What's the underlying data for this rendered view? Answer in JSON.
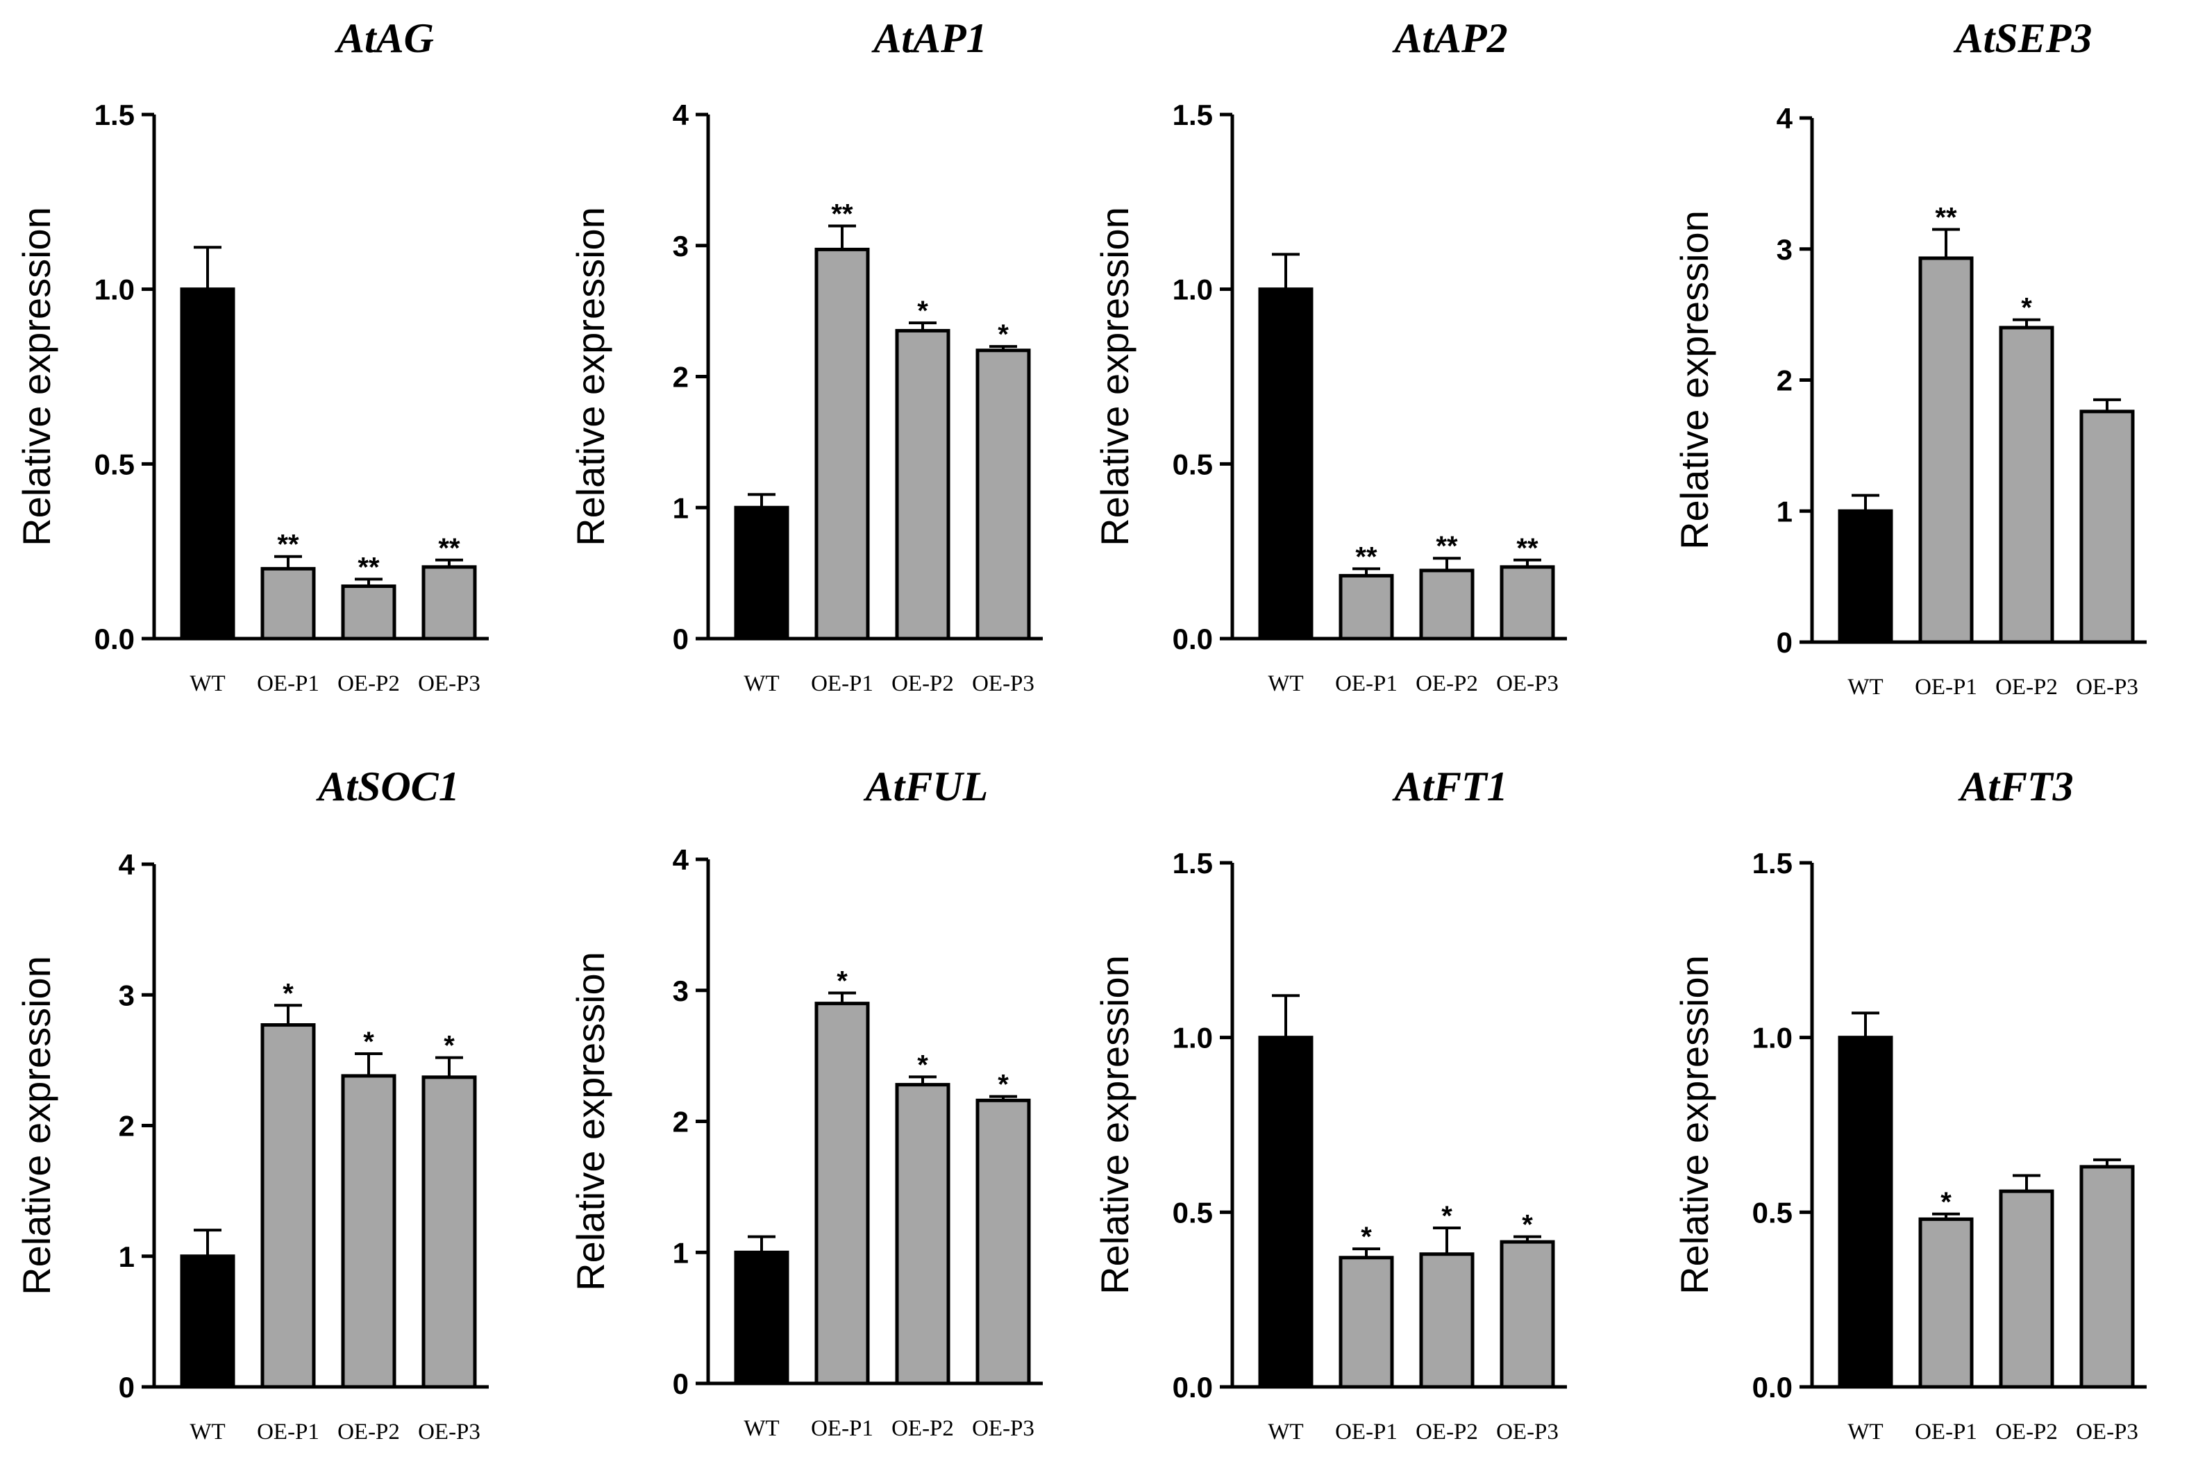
{
  "figure": {
    "colors": {
      "wt_bar": "#000000",
      "oe_bar": "#a6a6a6",
      "axis": "#000000"
    }
  },
  "chart_data": [
    {
      "type": "bar",
      "title": "AtAG",
      "ylabel": "Relative expression",
      "xlabel": "",
      "categories": [
        "WT",
        "OE-P1",
        "OE-P2",
        "OE-P3"
      ],
      "values": [
        1.0,
        0.2,
        0.15,
        0.205
      ],
      "errors": [
        0.12,
        0.035,
        0.02,
        0.02
      ],
      "significance": [
        "",
        "**",
        "**",
        "**"
      ],
      "ylim": [
        0,
        1.5
      ],
      "yticks": [
        "0.0",
        "0.5",
        "1.0",
        "1.5"
      ]
    },
    {
      "type": "bar",
      "title": "AtAP1",
      "ylabel": "Relative expression",
      "xlabel": "",
      "categories": [
        "WT",
        "OE-P1",
        "OE-P2",
        "OE-P3"
      ],
      "values": [
        1.0,
        2.97,
        2.35,
        2.2
      ],
      "errors": [
        0.1,
        0.18,
        0.06,
        0.03
      ],
      "significance": [
        "",
        "**",
        "*",
        "*"
      ],
      "ylim": [
        0,
        4
      ],
      "yticks": [
        "0",
        "1",
        "2",
        "3",
        "4"
      ]
    },
    {
      "type": "bar",
      "title": "AtAP2",
      "ylabel": "Relative expression",
      "xlabel": "",
      "categories": [
        "WT",
        "OE-P1",
        "OE-P2",
        "OE-P3"
      ],
      "values": [
        1.0,
        0.18,
        0.195,
        0.205
      ],
      "errors": [
        0.1,
        0.02,
        0.035,
        0.02
      ],
      "significance": [
        "",
        "**",
        "**",
        "**"
      ],
      "ylim": [
        0,
        1.5
      ],
      "yticks": [
        "0.0",
        "0.5",
        "1.0",
        "1.5"
      ]
    },
    {
      "type": "bar",
      "title": "AtSEP3",
      "ylabel": "Relative expression",
      "xlabel": "",
      "categories": [
        "WT",
        "OE-P1",
        "OE-P2",
        "OE-P3"
      ],
      "values": [
        1.0,
        2.93,
        2.4,
        1.76
      ],
      "errors": [
        0.12,
        0.22,
        0.06,
        0.09
      ],
      "significance": [
        "",
        "**",
        "*",
        ""
      ],
      "ylim": [
        0,
        4
      ],
      "yticks": [
        "0",
        "1",
        "2",
        "3",
        "4"
      ]
    },
    {
      "type": "bar",
      "title": "AtSOC1",
      "ylabel": "Relative expression",
      "xlabel": "",
      "categories": [
        "WT",
        "OE-P1",
        "OE-P2",
        "OE-P3"
      ],
      "values": [
        1.0,
        2.77,
        2.38,
        2.37
      ],
      "errors": [
        0.2,
        0.15,
        0.17,
        0.15
      ],
      "significance": [
        "",
        "*",
        "*",
        "*"
      ],
      "ylim": [
        0,
        4
      ],
      "yticks": [
        "0",
        "1",
        "2",
        "3",
        "4"
      ]
    },
    {
      "type": "bar",
      "title": "AtFUL",
      "ylabel": "Relative expression",
      "xlabel": "",
      "categories": [
        "WT",
        "OE-P1",
        "OE-P2",
        "OE-P3"
      ],
      "values": [
        1.0,
        2.9,
        2.28,
        2.16
      ],
      "errors": [
        0.12,
        0.08,
        0.06,
        0.03
      ],
      "significance": [
        "",
        "*",
        "*",
        "*"
      ],
      "ylim": [
        0,
        4
      ],
      "yticks": [
        "0",
        "1",
        "2",
        "3",
        "4"
      ]
    },
    {
      "type": "bar",
      "title": "AtFT1",
      "ylabel": "Relative expression",
      "xlabel": "",
      "categories": [
        "WT",
        "OE-P1",
        "OE-P2",
        "OE-P3"
      ],
      "values": [
        1.0,
        0.37,
        0.38,
        0.415
      ],
      "errors": [
        0.12,
        0.025,
        0.075,
        0.015
      ],
      "significance": [
        "",
        "*",
        "*",
        "*"
      ],
      "ylim": [
        0,
        1.5
      ],
      "yticks": [
        "0.0",
        "0.5",
        "1.0",
        "1.5"
      ]
    },
    {
      "type": "bar",
      "title": "AtFT3",
      "ylabel": "Relative expression",
      "xlabel": "",
      "categories": [
        "WT",
        "OE-P1",
        "OE-P2",
        "OE-P3"
      ],
      "values": [
        1.0,
        0.48,
        0.56,
        0.63
      ],
      "errors": [
        0.07,
        0.015,
        0.045,
        0.02
      ],
      "significance": [
        "",
        "*",
        "",
        ""
      ],
      "ylim": [
        0,
        1.5
      ],
      "yticks": [
        "0.0",
        "0.5",
        "1.0",
        "1.5"
      ]
    }
  ]
}
